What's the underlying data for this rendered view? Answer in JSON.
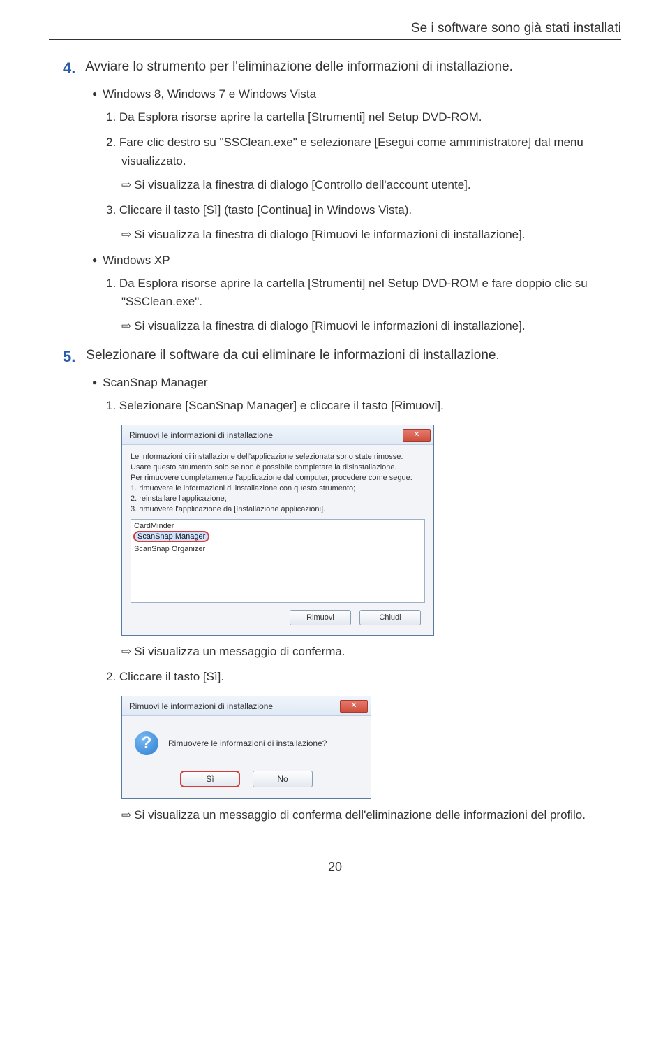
{
  "header": "Se i software sono già stati installati",
  "step4": {
    "num": "4.",
    "text": "Avviare lo strumento per l'eliminazione delle informazioni di installazione.",
    "win8": {
      "title": "Windows 8, Windows 7 e Windows Vista",
      "n1": "1.  Da Esplora risorse aprire la cartella [Strumenti] nel Setup DVD-ROM.",
      "n2": "2.  Fare clic destro su \"SSClean.exe\" e selezionare [Esegui come amministratore] dal menu visualizzato.",
      "r2": "Si visualizza la finestra di dialogo [Controllo dell'account utente].",
      "n3": "3.  Cliccare il tasto [Sì] (tasto [Continua] in Windows Vista).",
      "r3": "Si visualizza la finestra di dialogo [Rimuovi le informazioni di installazione]."
    },
    "winxp": {
      "title": "Windows XP",
      "n1": "1.  Da Esplora risorse aprire la cartella [Strumenti] nel Setup DVD-ROM e fare doppio clic su \"SSClean.exe\".",
      "r1": "Si visualizza la finestra di dialogo [Rimuovi le informazioni di installazione]."
    }
  },
  "step5": {
    "num": "5.",
    "text": "Selezionare il software da cui eliminare le informazioni di installazione.",
    "ssm": {
      "title": "ScanSnap Manager",
      "n1": "1.  Selezionare [ScanSnap Manager] e cliccare il tasto [Rimuovi].",
      "r1": "Si visualizza un messaggio di conferma.",
      "n2": "2.  Cliccare il tasto [Sì].",
      "r2": "Si visualizza un messaggio di conferma dell'eliminazione delle informazioni del profilo."
    }
  },
  "dialog1": {
    "title": "Rimuovi le informazioni di installazione",
    "msg": "Le informazioni di installazione dell'applicazione selezionata sono state rimosse.\nUsare questo strumento solo se non è possibile completare la disinstallazione.\nPer rimuovere completamente l'applicazione dal computer, procedere come segue:\n1. rimuovere le informazioni di installazione con questo strumento;\n2. reinstallare l'applicazione;\n3. rimuovere l'applicazione da [Installazione applicazioni].",
    "items": [
      "CardMinder",
      "ScanSnap Manager",
      "ScanSnap Organizer"
    ],
    "highlight_index": 1,
    "btn_remove": "Rimuovi",
    "btn_close": "Chiudi"
  },
  "dialog2": {
    "title": "Rimuovi le informazioni di installazione",
    "msg": "Rimuovere le informazioni di installazione?",
    "btn_yes": "Sì",
    "btn_no": "No"
  },
  "arrow": "⇨",
  "page_num": "20"
}
